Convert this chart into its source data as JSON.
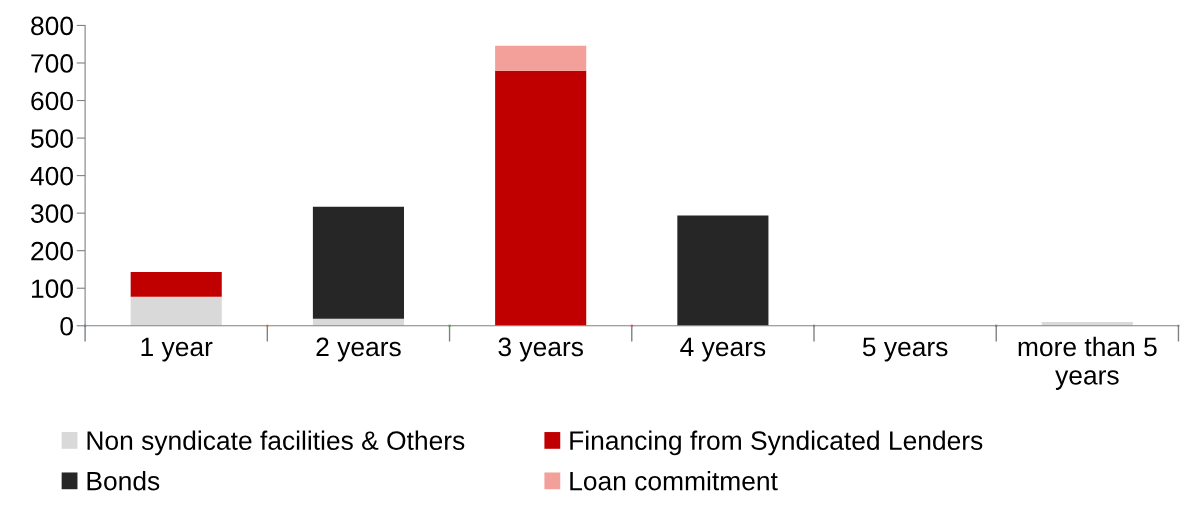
{
  "chart_data": {
    "type": "bar",
    "stacked": true,
    "categories": [
      "1 year",
      "2 years",
      "3 years",
      "4 years",
      "5 years",
      "more than 5\nyears"
    ],
    "series": [
      {
        "name": "Non syndicate facilities & Others",
        "color": "#d9d9d9",
        "values": [
          77,
          19,
          0,
          0,
          0,
          10
        ]
      },
      {
        "name": "Financing from Syndicated Lenders",
        "color": "#c00000",
        "values": [
          66,
          0,
          679,
          0,
          0,
          0
        ]
      },
      {
        "name": "Bonds",
        "color": "#262626",
        "values": [
          0,
          298,
          0,
          294,
          0,
          0
        ]
      },
      {
        "name": "Loan commitment",
        "color": "#f4a09a",
        "values": [
          0,
          0,
          67,
          0,
          0,
          0
        ]
      }
    ],
    "ylim": [
      0,
      800
    ],
    "yticks": [
      0,
      100,
      200,
      300,
      400,
      500,
      600,
      700,
      800
    ],
    "grid": false,
    "legend": "bottom"
  }
}
